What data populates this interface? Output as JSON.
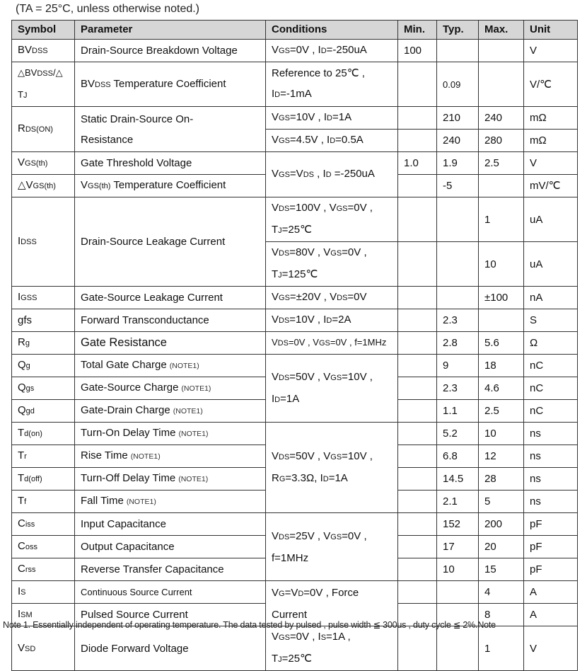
{
  "caption": "(TA = 25°C, unless otherwise noted.)",
  "columns": [
    "Symbol",
    "Parameter",
    "Conditions",
    "Min.",
    "Typ.",
    "Max.",
    "Unit"
  ],
  "rows": [
    [
      {
        "segs": [
          "BV",
          {
            "sub": "DSS"
          }
        ]
      },
      {
        "segs": [
          "Drain-Source Breakdown Voltage"
        ]
      },
      {
        "segs": [
          "V",
          {
            "sub": "GS"
          },
          "=0V , I",
          {
            "sub": "D"
          },
          "=-250uA"
        ]
      },
      {
        "segs": [
          "100"
        ]
      },
      {
        "segs": []
      },
      {
        "segs": []
      },
      {
        "segs": [
          "V"
        ]
      }
    ],
    [
      {
        "cls": "sm",
        "segs": [
          "△BV",
          {
            "sub": "DSS"
          },
          "/△",
          {
            "br": true
          },
          "T",
          {
            "sub": "J"
          }
        ]
      },
      {
        "segs": [
          "BV",
          {
            "sub": "DSS"
          },
          " Temperature Coefficient"
        ]
      },
      {
        "segs": [
          "Reference to 25℃ ,",
          {
            "br": true
          },
          "I",
          {
            "sub": "D"
          },
          "=-1mA"
        ]
      },
      {
        "segs": []
      },
      {
        "cls": "sm",
        "segs": [
          "0.09"
        ]
      },
      {
        "segs": []
      },
      {
        "segs": [
          "V/℃"
        ]
      }
    ],
    [
      {
        "rs": 2,
        "segs": [
          "R",
          {
            "sub": "DS(ON)"
          }
        ]
      },
      {
        "rs": 2,
        "segs": [
          "Static Drain-Source On-",
          {
            "br": true
          },
          "Resistance"
        ]
      },
      {
        "segs": [
          "V",
          {
            "sub": "GS"
          },
          "=10V , I",
          {
            "sub": "D"
          },
          "=1A"
        ]
      },
      {
        "segs": []
      },
      {
        "segs": [
          "210"
        ]
      },
      {
        "segs": [
          "240"
        ]
      },
      {
        "segs": [
          "mΩ"
        ]
      }
    ],
    [
      {
        "segs": [
          "V",
          {
            "sub": "GS"
          },
          "=4.5V , I",
          {
            "sub": "D"
          },
          "=0.5A"
        ]
      },
      {
        "segs": []
      },
      {
        "segs": [
          "240"
        ]
      },
      {
        "segs": [
          "280"
        ]
      },
      {
        "segs": [
          "mΩ"
        ]
      }
    ],
    [
      {
        "segs": [
          "V",
          {
            "sub": "GS(th)"
          }
        ]
      },
      {
        "segs": [
          "Gate Threshold Voltage"
        ]
      },
      {
        "rs": 2,
        "segs": [
          "V",
          {
            "sub": "GS"
          },
          "=V",
          {
            "sub": "DS"
          },
          " , I",
          {
            "sub": "D"
          },
          " =-250uA"
        ]
      },
      {
        "segs": [
          "1.0"
        ]
      },
      {
        "segs": [
          "1.9"
        ]
      },
      {
        "segs": [
          "2.5"
        ]
      },
      {
        "segs": [
          "V"
        ]
      }
    ],
    [
      {
        "segs": [
          "△V",
          {
            "sub": "GS(th)"
          }
        ]
      },
      {
        "segs": [
          "V",
          {
            "sub": "GS(th)"
          },
          " Temperature Coefficient"
        ]
      },
      {
        "segs": []
      },
      {
        "segs": [
          "-5"
        ]
      },
      {
        "segs": []
      },
      {
        "segs": [
          "mV/℃"
        ]
      }
    ],
    [
      {
        "rs": 2,
        "segs": [
          "I",
          {
            "sub": "DSS"
          }
        ]
      },
      {
        "rs": 2,
        "segs": [
          "Drain-Source Leakage Current"
        ]
      },
      {
        "segs": [
          "V",
          {
            "sub": "DS"
          },
          "=100V , V",
          {
            "sub": "GS"
          },
          "=0V ,",
          {
            "br": true
          },
          "T",
          {
            "sub": "J"
          },
          "=25℃"
        ]
      },
      {
        "segs": []
      },
      {
        "segs": []
      },
      {
        "segs": [
          "1"
        ]
      },
      {
        "segs": [
          "uA"
        ]
      }
    ],
    [
      {
        "segs": [
          "V",
          {
            "sub": "DS"
          },
          "=80V , V",
          {
            "sub": "GS"
          },
          "=0V ,",
          {
            "br": true
          },
          "T",
          {
            "sub": "J"
          },
          "=125℃"
        ]
      },
      {
        "segs": []
      },
      {
        "segs": []
      },
      {
        "segs": [
          "10"
        ]
      },
      {
        "segs": [
          "uA"
        ]
      }
    ],
    [
      {
        "segs": [
          "I",
          {
            "sub": "GSS"
          }
        ]
      },
      {
        "segs": [
          "Gate-Source Leakage Current"
        ]
      },
      {
        "segs": [
          "V",
          {
            "sub": "GS"
          },
          "=±20V , V",
          {
            "sub": "DS"
          },
          "=0V"
        ]
      },
      {
        "segs": []
      },
      {
        "segs": []
      },
      {
        "segs": [
          "±100"
        ]
      },
      {
        "segs": [
          "nA"
        ]
      }
    ],
    [
      {
        "segs": [
          "gfs"
        ]
      },
      {
        "segs": [
          "Forward Transconductance"
        ]
      },
      {
        "segs": [
          "V",
          {
            "sub": "DS"
          },
          "=10V , I",
          {
            "sub": "D"
          },
          "=2A"
        ]
      },
      {
        "segs": []
      },
      {
        "segs": [
          "2.3"
        ]
      },
      {
        "segs": []
      },
      {
        "segs": [
          "S"
        ]
      }
    ],
    [
      {
        "segs": [
          "R",
          {
            "sub": "g"
          }
        ]
      },
      {
        "cls": "lg",
        "segs": [
          "Gate Resistance"
        ]
      },
      {
        "cls": "sm",
        "segs": [
          "V",
          {
            "sub": "DS"
          },
          "=0V , V",
          {
            "sub": "GS"
          },
          "=0V , f=1MHz"
        ]
      },
      {
        "segs": []
      },
      {
        "segs": [
          "2.8"
        ]
      },
      {
        "segs": [
          "5.6"
        ]
      },
      {
        "segs": [
          "Ω"
        ]
      }
    ],
    [
      {
        "segs": [
          "Q",
          {
            "sub": "g"
          }
        ]
      },
      {
        "segs": [
          "Total Gate Charge",
          {
            "note": "(NOTE1)"
          }
        ]
      },
      {
        "rs": 3,
        "segs": [
          "V",
          {
            "sub": "DS"
          },
          "=50V , V",
          {
            "sub": "GS"
          },
          "=10V ,",
          {
            "br": true
          },
          "I",
          {
            "sub": "D"
          },
          "=1A"
        ]
      },
      {
        "segs": []
      },
      {
        "segs": [
          "9"
        ]
      },
      {
        "segs": [
          "18"
        ]
      },
      {
        "segs": [
          "nC"
        ]
      }
    ],
    [
      {
        "segs": [
          "Q",
          {
            "sub": "gs"
          }
        ]
      },
      {
        "segs": [
          "Gate-Source Charge",
          {
            "note": "(NOTE1)"
          }
        ]
      },
      {
        "segs": []
      },
      {
        "segs": [
          "2.3"
        ]
      },
      {
        "segs": [
          "4.6"
        ]
      },
      {
        "segs": [
          "nC"
        ]
      }
    ],
    [
      {
        "segs": [
          "Q",
          {
            "sub": "gd"
          }
        ]
      },
      {
        "segs": [
          "Gate-Drain Charge",
          {
            "note": "(NOTE1)"
          }
        ]
      },
      {
        "segs": []
      },
      {
        "segs": [
          "1.1"
        ]
      },
      {
        "segs": [
          "2.5"
        ]
      },
      {
        "segs": [
          "nC"
        ]
      }
    ],
    [
      {
        "segs": [
          "T",
          {
            "sub": "d(on)"
          }
        ]
      },
      {
        "segs": [
          "Turn-On Delay Time",
          {
            "note": "(NOTE1)"
          }
        ]
      },
      {
        "rs": 4,
        "segs": [
          "V",
          {
            "sub": "DS"
          },
          "=50V , V",
          {
            "sub": "GS"
          },
          "=10V ,",
          {
            "br": true
          },
          "R",
          {
            "sub": "G"
          },
          "=3.3Ω, I",
          {
            "sub": "D"
          },
          "=1A"
        ]
      },
      {
        "segs": []
      },
      {
        "segs": [
          "5.2"
        ]
      },
      {
        "segs": [
          "10"
        ]
      },
      {
        "segs": [
          "ns"
        ]
      }
    ],
    [
      {
        "segs": [
          "T",
          {
            "sub": "r"
          }
        ]
      },
      {
        "segs": [
          "Rise Time",
          {
            "note": "(NOTE1)"
          }
        ]
      },
      {
        "segs": []
      },
      {
        "segs": [
          "6.8"
        ]
      },
      {
        "segs": [
          "12"
        ]
      },
      {
        "segs": [
          "ns"
        ]
      }
    ],
    [
      {
        "segs": [
          "T",
          {
            "sub": "d(off)"
          }
        ]
      },
      {
        "segs": [
          "Turn-Off Delay Time",
          {
            "note": "(NOTE1)"
          }
        ]
      },
      {
        "segs": []
      },
      {
        "segs": [
          "14.5"
        ]
      },
      {
        "segs": [
          "28"
        ]
      },
      {
        "segs": [
          "ns"
        ]
      }
    ],
    [
      {
        "segs": [
          "T",
          {
            "sub": "f"
          }
        ]
      },
      {
        "segs": [
          "Fall Time",
          {
            "note": "(NOTE1)"
          }
        ]
      },
      {
        "segs": []
      },
      {
        "segs": [
          "2.1"
        ]
      },
      {
        "segs": [
          "5"
        ]
      },
      {
        "segs": [
          "ns"
        ]
      }
    ],
    [
      {
        "segs": [
          "C",
          {
            "sub": "iss"
          }
        ]
      },
      {
        "segs": [
          "Input Capacitance"
        ]
      },
      {
        "rs": 3,
        "segs": [
          "V",
          {
            "sub": "DS"
          },
          "=25V , V",
          {
            "sub": "GS"
          },
          "=0V ,",
          {
            "br": true
          },
          "f=1MHz"
        ]
      },
      {
        "segs": []
      },
      {
        "segs": [
          "152"
        ]
      },
      {
        "segs": [
          "200"
        ]
      },
      {
        "segs": [
          "pF"
        ]
      }
    ],
    [
      {
        "segs": [
          "C",
          {
            "sub": "oss"
          }
        ]
      },
      {
        "segs": [
          "Output Capacitance"
        ]
      },
      {
        "segs": []
      },
      {
        "segs": [
          "17"
        ]
      },
      {
        "segs": [
          "20"
        ]
      },
      {
        "segs": [
          "pF"
        ]
      }
    ],
    [
      {
        "segs": [
          "C",
          {
            "sub": "rss"
          }
        ]
      },
      {
        "segs": [
          "Reverse Transfer Capacitance"
        ]
      },
      {
        "segs": []
      },
      {
        "segs": [
          "10"
        ]
      },
      {
        "segs": [
          "15"
        ]
      },
      {
        "segs": [
          "pF"
        ]
      }
    ],
    [
      {
        "segs": [
          "I",
          {
            "sub": "S"
          }
        ]
      },
      {
        "cls": "sm",
        "segs": [
          "Continuous Source Current"
        ]
      },
      {
        "rs": 2,
        "segs": [
          "V",
          {
            "sub": "G"
          },
          "=V",
          {
            "sub": "D"
          },
          "=0V , Force",
          {
            "br": true
          },
          "Current"
        ]
      },
      {
        "segs": []
      },
      {
        "segs": []
      },
      {
        "segs": [
          "4"
        ]
      },
      {
        "segs": [
          "A"
        ]
      }
    ],
    [
      {
        "segs": [
          "I",
          {
            "sub": "SM"
          }
        ]
      },
      {
        "segs": [
          "Pulsed Source Current"
        ]
      },
      {
        "segs": []
      },
      {
        "segs": []
      },
      {
        "segs": [
          "8"
        ]
      },
      {
        "segs": [
          "A"
        ]
      }
    ],
    [
      {
        "segs": [
          "V",
          {
            "sub": "SD"
          }
        ]
      },
      {
        "segs": [
          "Diode Forward Voltage"
        ]
      },
      {
        "segs": [
          "V",
          {
            "sub": "GS"
          },
          "=0V , I",
          {
            "sub": "S"
          },
          "=1A ,",
          {
            "br": true
          },
          "T",
          {
            "sub": "J"
          },
          "=25℃"
        ]
      },
      {
        "segs": []
      },
      {
        "segs": []
      },
      {
        "segs": [
          "1"
        ]
      },
      {
        "segs": [
          "V"
        ]
      }
    ]
  ],
  "footnote": "Note 1. Essentially independent of operating temperature. The data tested by pulsed , pulse width ≦ 300us , duty cycle ≦ 2%.Note",
  "colors": {
    "header_bg": "#d6d6d6",
    "border": "#333333"
  }
}
